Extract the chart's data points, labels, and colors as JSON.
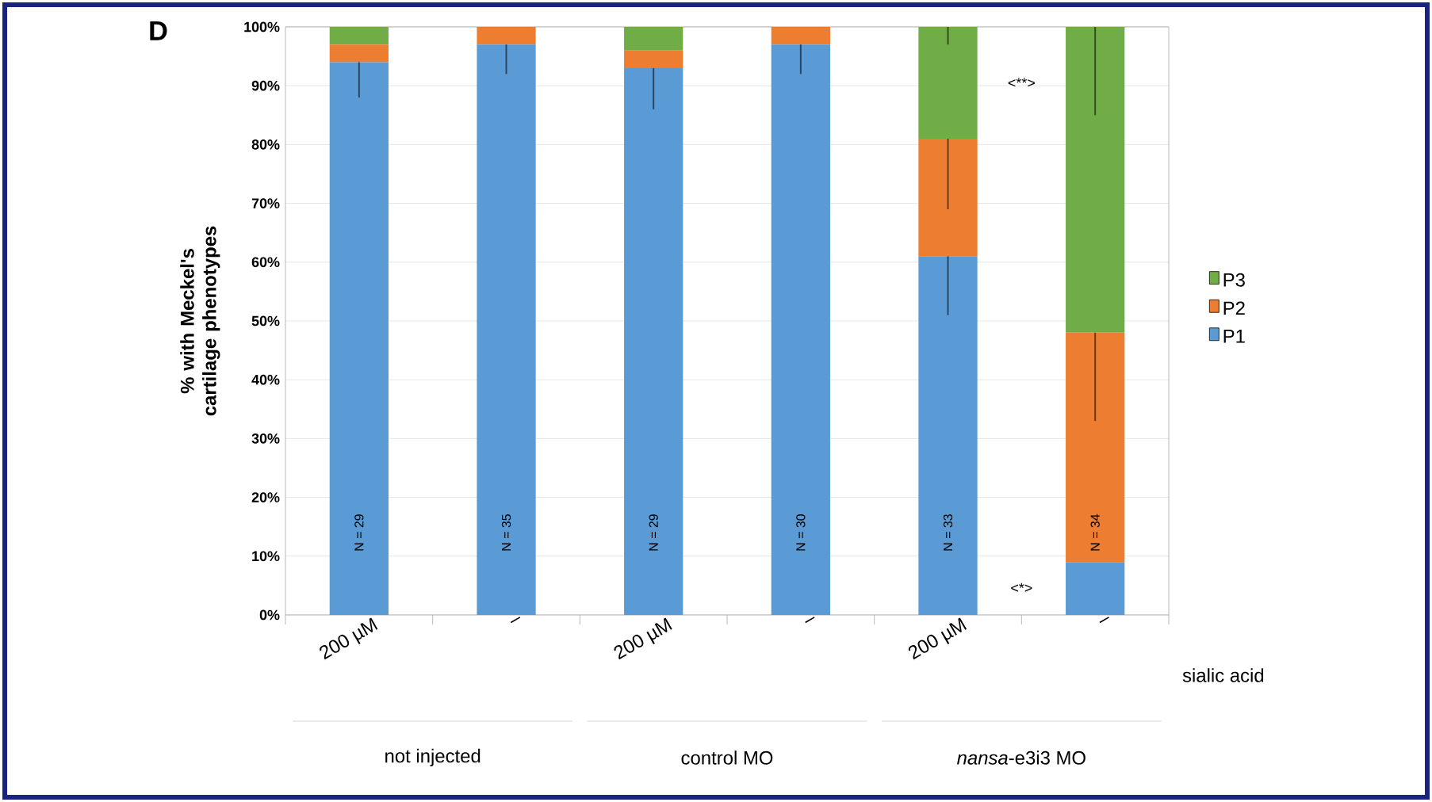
{
  "chart_data": {
    "type": "bar",
    "stacked": true,
    "title": "D",
    "ylabel": "% with Meckel's cartilage phenotypes",
    "xlabel": "sialic acid",
    "categories": [
      "200 µM",
      "–",
      "200 µM",
      "–",
      "200 µM",
      "–"
    ],
    "series": [
      {
        "name": "P1",
        "color": "#5b9bd5",
        "values": [
          94,
          97,
          93,
          97,
          61,
          9
        ],
        "errors": [
          [
            88,
            94
          ],
          [
            92,
            97
          ],
          [
            86,
            93
          ],
          [
            92,
            97
          ],
          [
            51,
            61
          ],
          null
        ]
      },
      {
        "name": "P2",
        "color": "#ed7d31",
        "values": [
          3,
          3,
          3,
          3,
          20,
          39
        ],
        "errors": [
          null,
          null,
          null,
          null,
          [
            69,
            81
          ],
          [
            33,
            48
          ]
        ]
      },
      {
        "name": "P3",
        "color": "#70ad47",
        "values": [
          3,
          0,
          4,
          0,
          19,
          52
        ],
        "errors": [
          null,
          null,
          null,
          null,
          [
            97,
            100
          ],
          [
            85,
            100
          ]
        ]
      }
    ],
    "ylim": [
      0,
      100
    ],
    "yticks": [
      {
        "value": 0,
        "label": "0%"
      },
      {
        "value": 10,
        "label": "10%"
      },
      {
        "value": 20,
        "label": "20%"
      },
      {
        "value": 30,
        "label": "30%"
      },
      {
        "value": 40,
        "label": "40%"
      },
      {
        "value": 50,
        "label": "50%"
      },
      {
        "value": 60,
        "label": "60%"
      },
      {
        "value": 70,
        "label": "70%"
      },
      {
        "value": 80,
        "label": "80%"
      },
      {
        "value": 90,
        "label": "90%"
      },
      {
        "value": 100,
        "label": "100%"
      }
    ],
    "grid": "y",
    "legend": "right",
    "annotations": [
      "N = 29",
      "N = 35",
      "N = 29",
      "N = 30",
      "N = 33",
      "N = 34",
      "<**>",
      "<*>",
      "not injected",
      "control MO",
      "*nansa*-e3i3 MO"
    ]
  }
}
